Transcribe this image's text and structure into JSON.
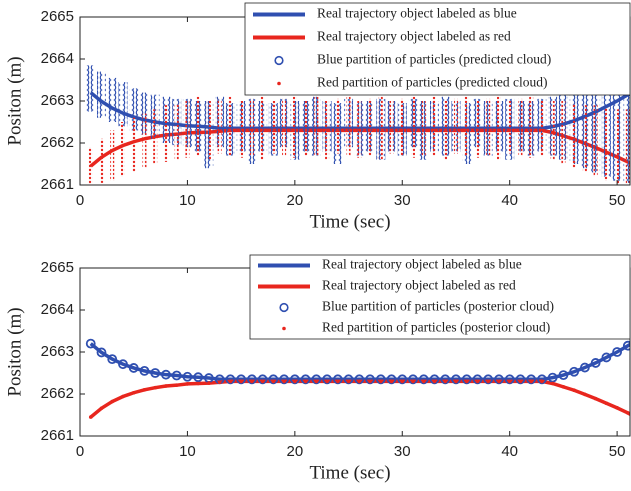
{
  "chart_data": [
    {
      "type": "line",
      "xlabel": "Time (sec)",
      "ylabel": "Positon (m)",
      "xlim": [
        0,
        51.2
      ],
      "ylim": [
        2661,
        2665
      ],
      "xticks": [
        0,
        10,
        20,
        30,
        40,
        50
      ],
      "yticks": [
        2661,
        2662,
        2663,
        2664,
        2665
      ],
      "legend": "upper right",
      "x": [
        1,
        2,
        3,
        4,
        5,
        6,
        7,
        8,
        9,
        10,
        11,
        12,
        13,
        14,
        15,
        16,
        17,
        18,
        19,
        20,
        21,
        22,
        23,
        24,
        25,
        26,
        27,
        28,
        29,
        30,
        31,
        32,
        33,
        34,
        35,
        36,
        37,
        38,
        39,
        40,
        41,
        42,
        43,
        44,
        45,
        46,
        47,
        48,
        49,
        50,
        51,
        52
      ],
      "series": [
        {
          "name": "Real trajectory object labeled as blue",
          "color": "#2f4fb0",
          "style": "line",
          "values": [
            2663.2,
            2662.99,
            2662.83,
            2662.71,
            2662.62,
            2662.55,
            2662.5,
            2662.46,
            2662.44,
            2662.41,
            2662.4,
            2662.38,
            2662.35,
            2662.35,
            2662.35,
            2662.35,
            2662.35,
            2662.35,
            2662.35,
            2662.35,
            2662.35,
            2662.35,
            2662.35,
            2662.35,
            2662.35,
            2662.35,
            2662.35,
            2662.35,
            2662.35,
            2662.35,
            2662.35,
            2662.35,
            2662.35,
            2662.35,
            2662.35,
            2662.35,
            2662.35,
            2662.35,
            2662.35,
            2662.35,
            2662.35,
            2662.35,
            2662.35,
            2662.39,
            2662.45,
            2662.53,
            2662.63,
            2662.74,
            2662.87,
            2663,
            2663.15,
            2663.3
          ]
        },
        {
          "name": "Real trajectory object labeled as red",
          "color": "#e8261e",
          "style": "line",
          "values": [
            2661.45,
            2661.66,
            2661.82,
            2661.94,
            2662.03,
            2662.1,
            2662.15,
            2662.19,
            2662.21,
            2662.24,
            2662.25,
            2662.26,
            2662.28,
            2662.3,
            2662.3,
            2662.3,
            2662.3,
            2662.3,
            2662.3,
            2662.3,
            2662.3,
            2662.3,
            2662.3,
            2662.3,
            2662.3,
            2662.3,
            2662.3,
            2662.3,
            2662.3,
            2662.3,
            2662.3,
            2662.3,
            2662.3,
            2662.3,
            2662.3,
            2662.3,
            2662.3,
            2662.3,
            2662.3,
            2662.3,
            2662.3,
            2662.3,
            2662.3,
            2662.25,
            2662.17,
            2662.09,
            2661.99,
            2661.89,
            2661.78,
            2661.67,
            2661.55,
            2661.4
          ]
        },
        {
          "name": "Blue partition of particles (predicted cloud)",
          "color": "#2f4fb0",
          "style": "circle",
          "low": [
            2662.75,
            2662.6,
            2662.5,
            2662.4,
            2662.3,
            2662.2,
            2662.1,
            2662.0,
            2661.95,
            2661.9,
            2661.8,
            2661.4,
            2661.9,
            2661.7,
            2661.8,
            2661.5,
            2661.8,
            2661.7,
            2661.9,
            2661.6,
            2661.8,
            2661.7,
            2661.8,
            2661.5,
            2661.9,
            2661.7,
            2661.8,
            2661.6,
            2661.8,
            2661.7,
            2661.9,
            2661.6,
            2661.8,
            2661.7,
            2661.8,
            2661.5,
            2661.9,
            2661.7,
            2661.8,
            2661.6,
            2661.8,
            2661.7,
            2661.8,
            2661.7,
            2661.6,
            2661.5,
            2661.4,
            2661.3,
            2661.2,
            2661.1,
            2661.05,
            2661.0
          ],
          "high": [
            2663.85,
            2663.7,
            2663.55,
            2663.45,
            2663.3,
            2663.2,
            2663.15,
            2663.1,
            2663.05,
            2663.05,
            2663.0,
            2663.0,
            2663.1,
            2662.95,
            2663.0,
            2663.05,
            2663.0,
            2662.95,
            2663.05,
            2663.0,
            2663.0,
            2663.1,
            2663.0,
            2662.95,
            2663.05,
            2663.0,
            2663.0,
            2663.05,
            2663.0,
            2662.95,
            2663.05,
            2663.0,
            2663.0,
            2663.1,
            2663.0,
            2662.95,
            2663.05,
            2663.0,
            2663.0,
            2663.05,
            2663.0,
            2663.0,
            2663.05,
            2663.1,
            2663.2,
            2663.3,
            2663.4,
            2663.5,
            2663.6,
            2663.7,
            2663.8,
            2663.9
          ]
        },
        {
          "name": "Red partition of particles (predicted cloud)",
          "color": "#e8261e",
          "style": "dot",
          "low": [
            2661.0,
            2661.05,
            2661.1,
            2661.2,
            2661.3,
            2661.4,
            2661.5,
            2661.55,
            2661.6,
            2661.65,
            2661.7,
            2661.6,
            2661.75,
            2661.7,
            2661.65,
            2661.7,
            2661.6,
            2661.75,
            2661.7,
            2661.65,
            2661.7,
            2661.7,
            2661.6,
            2661.75,
            2661.7,
            2661.65,
            2661.7,
            2661.6,
            2661.75,
            2661.7,
            2661.65,
            2661.7,
            2661.7,
            2661.6,
            2661.75,
            2661.7,
            2661.65,
            2661.7,
            2661.6,
            2661.75,
            2661.7,
            2661.65,
            2661.7,
            2661.6,
            2661.5,
            2661.4,
            2661.3,
            2661.2,
            2661.1,
            2661.0,
            2661.0,
            2661.0
          ],
          "high": [
            2661.9,
            2662.1,
            2662.3,
            2662.5,
            2662.6,
            2662.7,
            2662.8,
            2662.9,
            2662.95,
            2663.0,
            2663.1,
            2663.0,
            2663.05,
            2663.1,
            2663.0,
            2663.05,
            2663.1,
            2663.0,
            2663.05,
            2663.1,
            2663.0,
            2663.1,
            2663.0,
            2663.05,
            2663.1,
            2663.0,
            2663.05,
            2663.1,
            2663.0,
            2663.05,
            2663.1,
            2663.0,
            2663.1,
            2663.0,
            2663.05,
            2663.1,
            2663.0,
            2663.05,
            2663.1,
            2663.0,
            2663.05,
            2663.1,
            2663.0,
            2663.0,
            2663.0,
            2662.95,
            2662.9,
            2662.9,
            2662.85,
            2662.8,
            2662.8,
            2662.75
          ]
        }
      ]
    },
    {
      "type": "line",
      "xlabel": "Time (sec)",
      "ylabel": "Positon (m)",
      "xlim": [
        0,
        51.2
      ],
      "ylim": [
        2661,
        2665
      ],
      "xticks": [
        0,
        10,
        20,
        30,
        40,
        50
      ],
      "yticks": [
        2661,
        2662,
        2663,
        2664,
        2665
      ],
      "legend": "upper right",
      "x": [
        1,
        2,
        3,
        4,
        5,
        6,
        7,
        8,
        9,
        10,
        11,
        12,
        13,
        14,
        15,
        16,
        17,
        18,
        19,
        20,
        21,
        22,
        23,
        24,
        25,
        26,
        27,
        28,
        29,
        30,
        31,
        32,
        33,
        34,
        35,
        36,
        37,
        38,
        39,
        40,
        41,
        42,
        43,
        44,
        45,
        46,
        47,
        48,
        49,
        50,
        51,
        52
      ],
      "series": [
        {
          "name": "Real trajectory object labeled as blue",
          "color": "#2f4fb0",
          "style": "line",
          "values": [
            2663.2,
            2662.99,
            2662.83,
            2662.71,
            2662.62,
            2662.55,
            2662.5,
            2662.46,
            2662.44,
            2662.41,
            2662.4,
            2662.38,
            2662.35,
            2662.35,
            2662.35,
            2662.35,
            2662.35,
            2662.35,
            2662.35,
            2662.35,
            2662.35,
            2662.35,
            2662.35,
            2662.35,
            2662.35,
            2662.35,
            2662.35,
            2662.35,
            2662.35,
            2662.35,
            2662.35,
            2662.35,
            2662.35,
            2662.35,
            2662.35,
            2662.35,
            2662.35,
            2662.35,
            2662.35,
            2662.35,
            2662.35,
            2662.35,
            2662.35,
            2662.39,
            2662.45,
            2662.53,
            2662.63,
            2662.74,
            2662.87,
            2663,
            2663.15,
            2663.3
          ]
        },
        {
          "name": "Real trajectory object labeled as red",
          "color": "#e8261e",
          "style": "line",
          "values": [
            2661.45,
            2661.66,
            2661.82,
            2661.94,
            2662.03,
            2662.1,
            2662.15,
            2662.19,
            2662.21,
            2662.24,
            2662.25,
            2662.26,
            2662.28,
            2662.3,
            2662.3,
            2662.3,
            2662.3,
            2662.3,
            2662.3,
            2662.3,
            2662.3,
            2662.3,
            2662.3,
            2662.3,
            2662.3,
            2662.3,
            2662.3,
            2662.3,
            2662.3,
            2662.3,
            2662.3,
            2662.3,
            2662.3,
            2662.3,
            2662.3,
            2662.3,
            2662.3,
            2662.3,
            2662.3,
            2662.3,
            2662.3,
            2662.3,
            2662.3,
            2662.25,
            2662.17,
            2662.09,
            2661.99,
            2661.89,
            2661.78,
            2661.67,
            2661.55,
            2661.4
          ]
        },
        {
          "name": "Blue partition of particles (posterior cloud)",
          "color": "#2f4fb0",
          "style": "circle",
          "values": [
            2663.2,
            2662.99,
            2662.83,
            2662.71,
            2662.62,
            2662.55,
            2662.5,
            2662.46,
            2662.44,
            2662.41,
            2662.4,
            2662.38,
            2662.35,
            2662.35,
            2662.35,
            2662.35,
            2662.35,
            2662.35,
            2662.35,
            2662.35,
            2662.35,
            2662.35,
            2662.35,
            2662.35,
            2662.35,
            2662.35,
            2662.35,
            2662.35,
            2662.35,
            2662.35,
            2662.35,
            2662.35,
            2662.35,
            2662.35,
            2662.35,
            2662.35,
            2662.35,
            2662.35,
            2662.35,
            2662.35,
            2662.35,
            2662.35,
            2662.35,
            2662.39,
            2662.45,
            2662.53,
            2662.63,
            2662.74,
            2662.87,
            2663,
            2663.15,
            2663.3
          ]
        },
        {
          "name": "Red partition of particles (posterior cloud)",
          "color": "#e8261e",
          "style": "dot",
          "values": [
            2661.45,
            2661.66,
            2661.82,
            2661.94,
            2662.03,
            2662.1,
            2662.15,
            2662.19,
            2662.21,
            2662.24,
            2662.25,
            2662.26,
            2662.28,
            2662.3,
            2662.3,
            2662.3,
            2662.3,
            2662.3,
            2662.3,
            2662.3,
            2662.3,
            2662.3,
            2662.3,
            2662.3,
            2662.3,
            2662.3,
            2662.3,
            2662.3,
            2662.3,
            2662.3,
            2662.3,
            2662.3,
            2662.3,
            2662.3,
            2662.3,
            2662.3,
            2662.3,
            2662.3,
            2662.3,
            2662.3,
            2662.3,
            2662.3,
            2662.3,
            2662.25,
            2662.17,
            2662.09,
            2661.99,
            2661.89,
            2661.78,
            2661.67,
            2661.55,
            2661.4
          ]
        }
      ]
    }
  ]
}
